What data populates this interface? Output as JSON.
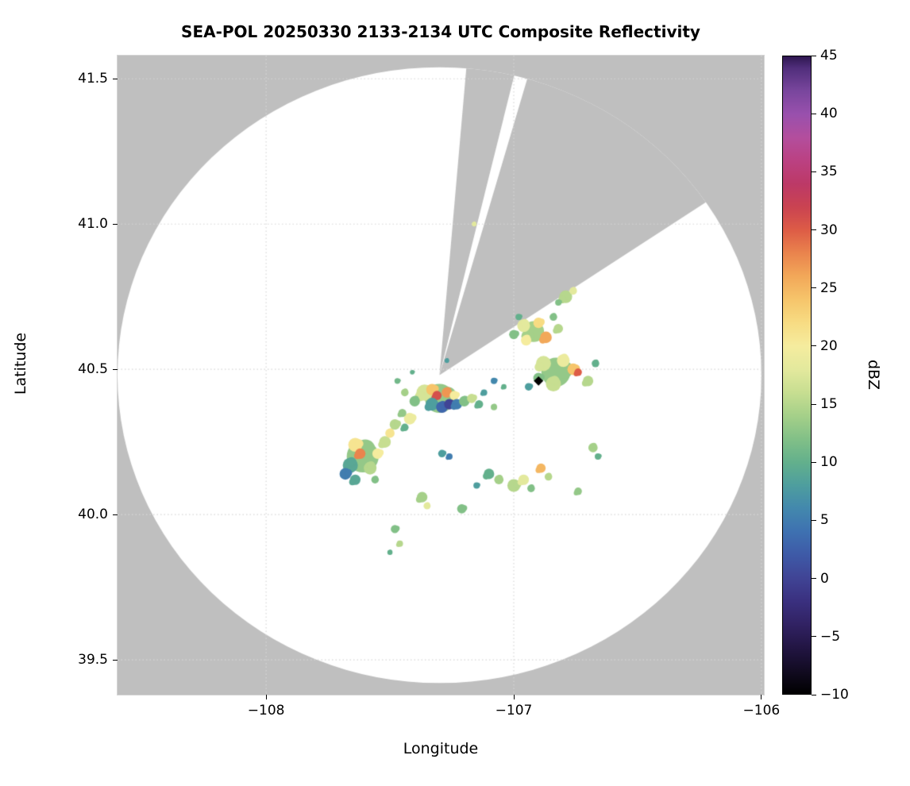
{
  "chart_data": {
    "type": "heatmap",
    "title": "SEA-POL 20250330 2133-2134 UTC Composite Reflectivity",
    "xlabel": "Longitude",
    "ylabel": "Latitude",
    "xlim": [
      -108.6,
      -105.99
    ],
    "ylim": [
      39.38,
      41.58
    ],
    "xticks": [
      -108,
      -107,
      -106
    ],
    "xtick_labels": [
      "−108",
      "−107",
      "−106"
    ],
    "yticks": [
      41.5,
      41.0,
      40.5,
      40.0,
      39.5
    ],
    "ytick_labels": [
      "41.5",
      "41.0",
      "40.5",
      "40.0",
      "39.5"
    ],
    "grid": "dotted",
    "background_color": "#bfbfbf",
    "scan_area_color": "#ffffff",
    "radar_center": {
      "lon": -107.3,
      "lat": 40.48
    },
    "range_radius_deg": {
      "lon": 1.3,
      "lat": 1.06
    },
    "blocked_sectors_deg": [
      {
        "start": 5.0,
        "end": 14.5
      },
      {
        "start": 16.5,
        "end": 57.0
      }
    ],
    "site_marker": {
      "lon": -106.9,
      "lat": 40.46,
      "symbol": "diamond",
      "color": "#000000"
    },
    "colorbar": {
      "label": "dBZ",
      "min": -10,
      "max": 45,
      "ticks": [
        45,
        40,
        35,
        30,
        25,
        20,
        15,
        10,
        5,
        0,
        -5,
        -10
      ],
      "tick_labels": [
        "45",
        "40",
        "35",
        "30",
        "25",
        "20",
        "15",
        "10",
        "5",
        "0",
        "−5",
        "−10"
      ]
    },
    "colormap_stops": [
      [
        -10,
        "#000000"
      ],
      [
        -8,
        "#120b22"
      ],
      [
        -6,
        "#221543"
      ],
      [
        -4,
        "#312263"
      ],
      [
        -2,
        "#3a307f"
      ],
      [
        0,
        "#404495"
      ],
      [
        2,
        "#3e5aa7"
      ],
      [
        4,
        "#3e71b1"
      ],
      [
        6,
        "#4388ad"
      ],
      [
        8,
        "#4e9e9e"
      ],
      [
        10,
        "#63b08c"
      ],
      [
        12,
        "#82c087"
      ],
      [
        14,
        "#a5d089"
      ],
      [
        16,
        "#c7de91"
      ],
      [
        18,
        "#e3e99d"
      ],
      [
        20,
        "#f5ec9e"
      ],
      [
        22,
        "#f7dc83"
      ],
      [
        24,
        "#f6c56b"
      ],
      [
        26,
        "#f2a859"
      ],
      [
        28,
        "#ea844d"
      ],
      [
        30,
        "#dd5c46"
      ],
      [
        32,
        "#ca4351"
      ],
      [
        34,
        "#bc3967"
      ],
      [
        36,
        "#bb4182"
      ],
      [
        38,
        "#b34e9d"
      ],
      [
        40,
        "#9950ad"
      ],
      [
        42,
        "#79469d"
      ],
      [
        44,
        "#502e7b"
      ],
      [
        45,
        "#2e1750"
      ]
    ],
    "echoes": [
      [
        -107.3,
        40.4,
        0.05,
        13
      ],
      [
        -107.36,
        40.42,
        0.028,
        17
      ],
      [
        -107.4,
        40.39,
        0.018,
        12
      ],
      [
        -107.33,
        40.43,
        0.02,
        24
      ],
      [
        -107.31,
        40.41,
        0.016,
        31
      ],
      [
        -107.27,
        40.42,
        0.018,
        27
      ],
      [
        -107.24,
        40.41,
        0.016,
        20
      ],
      [
        -107.33,
        40.38,
        0.022,
        8
      ],
      [
        -107.29,
        40.37,
        0.02,
        3
      ],
      [
        -107.26,
        40.38,
        0.018,
        0
      ],
      [
        -107.23,
        40.38,
        0.018,
        5
      ],
      [
        -107.2,
        40.39,
        0.018,
        12
      ],
      [
        -107.17,
        40.4,
        0.016,
        16
      ],
      [
        -107.14,
        40.38,
        0.014,
        10
      ],
      [
        -107.44,
        40.42,
        0.013,
        14
      ],
      [
        -107.47,
        40.46,
        0.01,
        11
      ],
      [
        -107.12,
        40.42,
        0.011,
        8
      ],
      [
        -107.08,
        40.37,
        0.011,
        13
      ],
      [
        -107.42,
        40.33,
        0.02,
        19
      ],
      [
        -107.45,
        40.35,
        0.014,
        13
      ],
      [
        -107.61,
        40.2,
        0.055,
        13
      ],
      [
        -107.64,
        40.24,
        0.024,
        21
      ],
      [
        -107.62,
        40.21,
        0.018,
        28
      ],
      [
        -107.66,
        40.17,
        0.026,
        9
      ],
      [
        -107.68,
        40.14,
        0.02,
        5
      ],
      [
        -107.64,
        40.12,
        0.018,
        9
      ],
      [
        -107.58,
        40.16,
        0.022,
        15
      ],
      [
        -107.55,
        40.21,
        0.018,
        20
      ],
      [
        -107.52,
        40.25,
        0.02,
        16
      ],
      [
        -107.5,
        40.28,
        0.016,
        21
      ],
      [
        -107.48,
        40.31,
        0.018,
        15
      ],
      [
        -107.44,
        40.3,
        0.013,
        10
      ],
      [
        -107.56,
        40.12,
        0.013,
        12
      ],
      [
        -106.83,
        40.49,
        0.05,
        13
      ],
      [
        -106.88,
        40.52,
        0.026,
        17
      ],
      [
        -106.8,
        40.53,
        0.022,
        19
      ],
      [
        -106.76,
        40.5,
        0.02,
        24
      ],
      [
        -106.74,
        40.49,
        0.013,
        30
      ],
      [
        -106.84,
        40.45,
        0.026,
        16
      ],
      [
        -106.9,
        40.47,
        0.018,
        12
      ],
      [
        -106.7,
        40.46,
        0.018,
        15
      ],
      [
        -106.67,
        40.52,
        0.013,
        10
      ],
      [
        -106.94,
        40.44,
        0.013,
        8
      ],
      [
        -106.92,
        40.63,
        0.036,
        14
      ],
      [
        -106.96,
        40.65,
        0.022,
        18
      ],
      [
        -106.9,
        40.66,
        0.018,
        22
      ],
      [
        -106.87,
        40.61,
        0.02,
        26
      ],
      [
        -106.95,
        40.6,
        0.018,
        20
      ],
      [
        -107.0,
        40.62,
        0.016,
        12
      ],
      [
        -106.82,
        40.64,
        0.016,
        15
      ],
      [
        -106.84,
        40.68,
        0.013,
        12
      ],
      [
        -106.98,
        40.68,
        0.011,
        10
      ],
      [
        -106.79,
        40.75,
        0.022,
        15
      ],
      [
        -106.76,
        40.77,
        0.013,
        18
      ],
      [
        -106.82,
        40.73,
        0.011,
        12
      ],
      [
        -107.1,
        40.14,
        0.018,
        10
      ],
      [
        -107.06,
        40.12,
        0.016,
        14
      ],
      [
        -107.0,
        40.1,
        0.022,
        15
      ],
      [
        -106.96,
        40.12,
        0.018,
        18
      ],
      [
        -106.93,
        40.09,
        0.013,
        12
      ],
      [
        -107.15,
        40.1,
        0.011,
        8
      ],
      [
        -106.89,
        40.16,
        0.016,
        25
      ],
      [
        -106.86,
        40.13,
        0.013,
        15
      ],
      [
        -107.21,
        40.02,
        0.016,
        12
      ],
      [
        -107.37,
        40.06,
        0.018,
        14
      ],
      [
        -107.35,
        40.03,
        0.012,
        18
      ],
      [
        -107.48,
        39.95,
        0.014,
        12
      ],
      [
        -107.46,
        39.9,
        0.011,
        15
      ],
      [
        -107.5,
        39.87,
        0.009,
        10
      ],
      [
        -107.29,
        40.21,
        0.013,
        8
      ],
      [
        -107.26,
        40.2,
        0.011,
        5
      ],
      [
        -106.68,
        40.23,
        0.016,
        14
      ],
      [
        -106.66,
        40.2,
        0.011,
        10
      ],
      [
        -106.74,
        40.08,
        0.013,
        13
      ],
      [
        -107.16,
        41.0,
        0.008,
        18
      ],
      [
        -107.08,
        40.46,
        0.011,
        6
      ],
      [
        -107.04,
        40.44,
        0.009,
        10
      ],
      [
        -107.27,
        40.53,
        0.008,
        8
      ],
      [
        -107.41,
        40.49,
        0.008,
        10
      ]
    ]
  }
}
